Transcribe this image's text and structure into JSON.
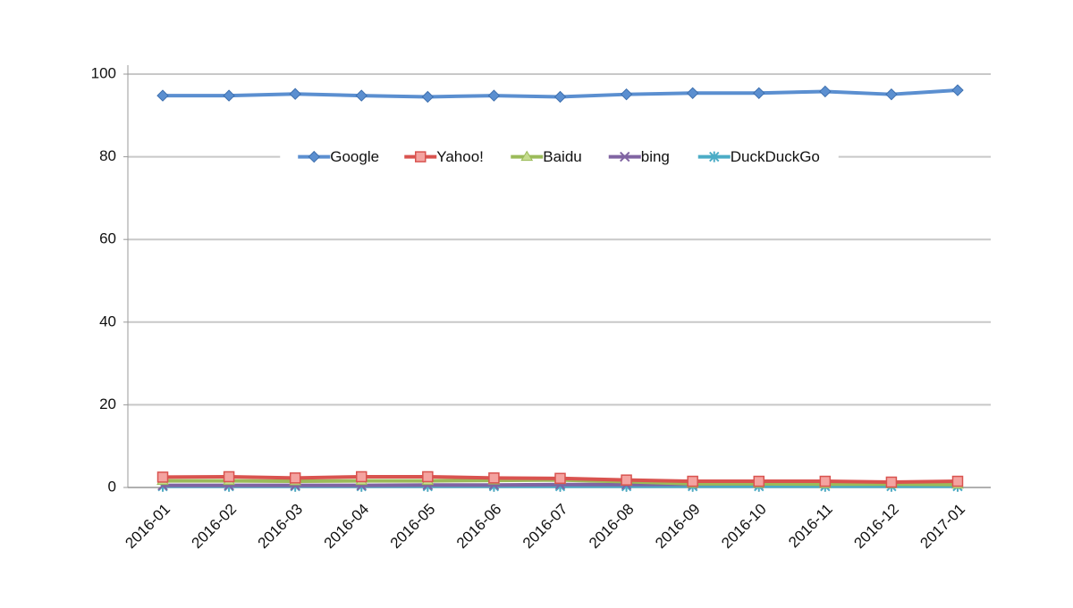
{
  "chart_data": {
    "type": "line",
    "categories": [
      "2016-01",
      "2016-02",
      "2016-03",
      "2016-04",
      "2016-05",
      "2016-06",
      "2016-07",
      "2016-08",
      "2016-09",
      "2016-10",
      "2016-11",
      "2016-12",
      "2017-01"
    ],
    "series": [
      {
        "name": "Google",
        "color": "#5b8fd0",
        "marker": "diamond",
        "values": [
          94.8,
          94.8,
          95.2,
          94.8,
          94.5,
          94.8,
          94.5,
          95.1,
          95.4,
          95.4,
          95.8,
          95.1,
          96.1
        ]
      },
      {
        "name": "Yahoo!",
        "color": "#d9534f",
        "marker": "square",
        "values": [
          2.5,
          2.6,
          2.3,
          2.6,
          2.6,
          2.3,
          2.2,
          1.8,
          1.5,
          1.5,
          1.5,
          1.3,
          1.5
        ]
      },
      {
        "name": "Baidu",
        "color": "#9bbb59",
        "marker": "triangle",
        "values": [
          1.6,
          1.6,
          1.5,
          1.6,
          1.6,
          1.7,
          1.8,
          1.4,
          0.9,
          0.9,
          0.8,
          0.8,
          0.7
        ]
      },
      {
        "name": "bing",
        "color": "#8064a2",
        "marker": "x",
        "values": [
          0.5,
          0.5,
          0.5,
          0.5,
          0.6,
          0.6,
          0.7,
          0.7,
          0.8,
          0.9,
          0.9,
          1.0,
          0.9
        ]
      },
      {
        "name": "DuckDuckGo",
        "color": "#4bacc6",
        "marker": "star",
        "values": [
          0.3,
          0.3,
          0.3,
          0.3,
          0.3,
          0.3,
          0.3,
          0.3,
          0.3,
          0.3,
          0.3,
          0.3,
          0.3
        ]
      }
    ],
    "ylim": [
      0,
      100
    ],
    "yticks": [
      0,
      20,
      40,
      60,
      80,
      100
    ],
    "grid": true,
    "legend": "top"
  }
}
